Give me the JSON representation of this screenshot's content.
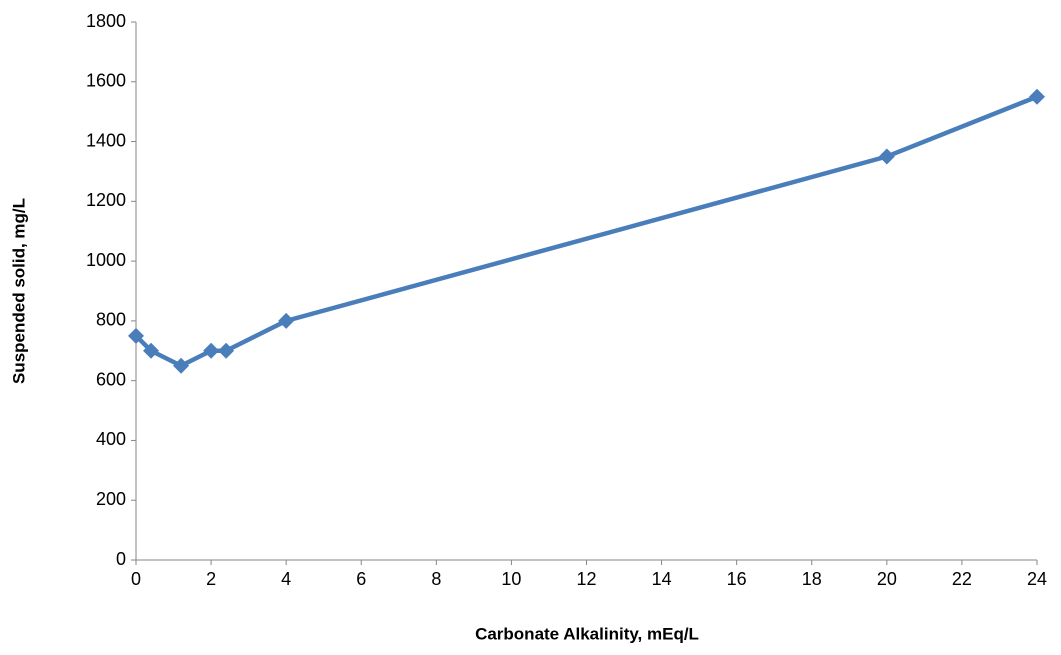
{
  "chart_data": {
    "type": "line",
    "x_label": "Carbonate Alkalinity, mEq/L",
    "y_label": "Suspended solid, mg/L",
    "x": [
      0,
      0.4,
      1.2,
      2,
      2.4,
      4,
      20,
      24
    ],
    "series": [
      {
        "color": "#4a7ebb",
        "values": [
          750,
          700,
          650,
          700,
          700,
          800,
          1350,
          1550
        ]
      }
    ],
    "xlim": [
      0,
      24
    ],
    "xticks": [
      0,
      2,
      4,
      6,
      8,
      10,
      12,
      14,
      16,
      18,
      20,
      22,
      24
    ],
    "ylim": [
      0,
      1800
    ],
    "yticks": [
      0,
      200,
      400,
      600,
      800,
      1000,
      1200,
      1400,
      1600,
      1800
    ],
    "grid": false
  }
}
